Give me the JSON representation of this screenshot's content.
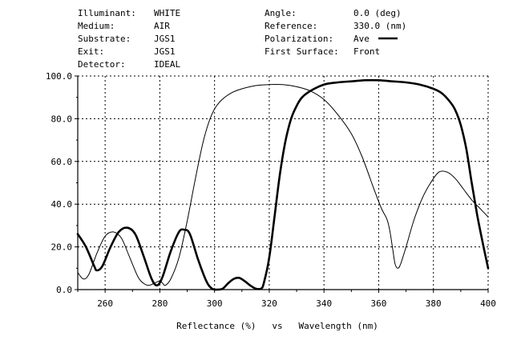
{
  "header": {
    "left": [
      {
        "label": "Illuminant:",
        "value": "WHITE"
      },
      {
        "label": "Medium:",
        "value": "AIR"
      },
      {
        "label": "Substrate:",
        "value": "JGS1"
      },
      {
        "label": "Exit:",
        "value": "JGS1"
      },
      {
        "label": "Detector:",
        "value": "IDEAL"
      }
    ],
    "right": [
      {
        "label": "Angle:",
        "value": "0.0 (deg)"
      },
      {
        "label": "Reference:",
        "value": "330.0 (nm)"
      },
      {
        "label": "Polarization:",
        "value": "Ave"
      },
      {
        "label": "First Surface:",
        "value": "Front"
      }
    ]
  },
  "chart_data": {
    "type": "line",
    "xlabel": "Reflectance (%)   vs   Wavelength (nm)",
    "ylabel": "",
    "xlim": [
      250,
      400
    ],
    "ylim": [
      0,
      100
    ],
    "x_ticks": [
      "260",
      "280",
      "300",
      "320",
      "340",
      "360",
      "380",
      "400"
    ],
    "y_ticks": [
      "0.0",
      "20.0",
      "40.0",
      "60.0",
      "80.0",
      "100.0"
    ],
    "grid": true,
    "legend": "Polarization: Ave (thick line)",
    "series": [
      {
        "style": "thick",
        "color": "#000000",
        "points": [
          [
            250,
            26
          ],
          [
            253,
            20
          ],
          [
            256,
            11
          ],
          [
            257,
            9
          ],
          [
            259,
            11
          ],
          [
            262,
            20
          ],
          [
            265,
            27
          ],
          [
            268,
            29
          ],
          [
            271,
            26
          ],
          [
            274,
            16
          ],
          [
            277,
            5
          ],
          [
            279,
            2
          ],
          [
            281,
            6
          ],
          [
            284,
            18
          ],
          [
            287,
            27
          ],
          [
            289,
            28
          ],
          [
            291,
            26
          ],
          [
            294,
            14
          ],
          [
            297,
            4
          ],
          [
            299,
            0.5
          ],
          [
            301,
            0
          ],
          [
            303,
            0.5
          ],
          [
            305,
            3
          ],
          [
            307,
            5
          ],
          [
            309,
            5.5
          ],
          [
            311,
            4
          ],
          [
            313,
            2
          ],
          [
            315,
            0.5
          ],
          [
            317,
            0.5
          ],
          [
            318,
            3
          ],
          [
            320,
            15
          ],
          [
            322,
            35
          ],
          [
            324,
            55
          ],
          [
            326,
            70
          ],
          [
            328,
            80
          ],
          [
            330,
            86
          ],
          [
            332,
            90
          ],
          [
            335,
            93
          ],
          [
            340,
            96
          ],
          [
            345,
            97
          ],
          [
            350,
            97.5
          ],
          [
            355,
            98
          ],
          [
            360,
            98
          ],
          [
            365,
            97.5
          ],
          [
            370,
            97
          ],
          [
            375,
            96
          ],
          [
            380,
            94
          ],
          [
            383,
            92
          ],
          [
            386,
            88
          ],
          [
            388,
            84
          ],
          [
            390,
            77
          ],
          [
            392,
            66
          ],
          [
            394,
            50
          ],
          [
            396,
            35
          ],
          [
            398,
            22
          ],
          [
            400,
            10
          ]
        ]
      },
      {
        "style": "thin",
        "color": "#000000",
        "points": [
          [
            250,
            8
          ],
          [
            252,
            5
          ],
          [
            254,
            7
          ],
          [
            257,
            17
          ],
          [
            260,
            25
          ],
          [
            263,
            27
          ],
          [
            266,
            24
          ],
          [
            269,
            15
          ],
          [
            272,
            6
          ],
          [
            274,
            3
          ],
          [
            276,
            2
          ],
          [
            278,
            3
          ],
          [
            280,
            4
          ],
          [
            281,
            3
          ],
          [
            282,
            2
          ],
          [
            284,
            5
          ],
          [
            287,
            15
          ],
          [
            290,
            32
          ],
          [
            293,
            52
          ],
          [
            296,
            70
          ],
          [
            299,
            82
          ],
          [
            302,
            88
          ],
          [
            306,
            92
          ],
          [
            310,
            94
          ],
          [
            315,
            95.5
          ],
          [
            320,
            96
          ],
          [
            325,
            96
          ],
          [
            330,
            95
          ],
          [
            335,
            93
          ],
          [
            340,
            89
          ],
          [
            345,
            82
          ],
          [
            350,
            73
          ],
          [
            354,
            62
          ],
          [
            358,
            48
          ],
          [
            361,
            38
          ],
          [
            363,
            33
          ],
          [
            364,
            28
          ],
          [
            365,
            20
          ],
          [
            366,
            12
          ],
          [
            367,
            10
          ],
          [
            368,
            12
          ],
          [
            370,
            20
          ],
          [
            373,
            33
          ],
          [
            376,
            43
          ],
          [
            379,
            50
          ],
          [
            382,
            55
          ],
          [
            385,
            55
          ],
          [
            388,
            52
          ],
          [
            391,
            47
          ],
          [
            394,
            42
          ],
          [
            397,
            38
          ],
          [
            400,
            34
          ]
        ]
      }
    ]
  }
}
